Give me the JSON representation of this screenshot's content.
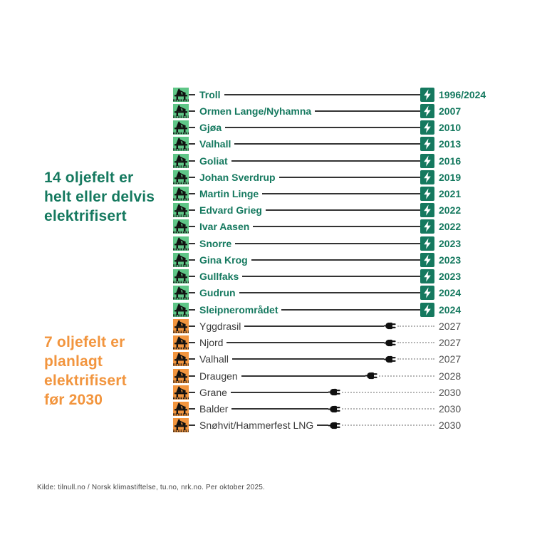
{
  "headline_electrified": {
    "lines": [
      "14 oljefelt er",
      "helt eller delvis",
      "elektrifisert"
    ]
  },
  "headline_planned": {
    "lines": [
      "7 oljefelt er",
      "planlagt",
      "elektrifisert",
      "før 2030"
    ]
  },
  "footer": {
    "source": "Kilde: tilnull.no / Norsk klimastiftelse, tu.no, nrk.no. Per oktober 2025."
  },
  "colors": {
    "teal": "#15795f",
    "rig_green": "#5fc687",
    "orange": "#f2953e",
    "line_dark": "#333333",
    "dotted_gray": "#b5b5b5",
    "name_dark": "#3a3a3a",
    "year_gray": "#4f4f4f",
    "footer_gray": "#464646",
    "icon_black": "#101010"
  },
  "icons": {
    "field_marker": "oil-rig-icon",
    "electrified_marker": "lightning-icon",
    "planned_marker": "plug-icon"
  },
  "chart_data": {
    "type": "table",
    "title": "",
    "groups": [
      {
        "id": "electrified",
        "label": "14 oljefelt er helt eller delvis elektrifisert",
        "fields": [
          {
            "name": "Troll",
            "year": "1996/2024"
          },
          {
            "name": "Ormen Lange/Nyhamna",
            "year": "2007"
          },
          {
            "name": "Gjøa",
            "year": "2010"
          },
          {
            "name": "Valhall",
            "year": "2013"
          },
          {
            "name": "Goliat",
            "year": "2016"
          },
          {
            "name": "Johan Sverdrup",
            "year": "2019"
          },
          {
            "name": "Martin Linge",
            "year": "2021"
          },
          {
            "name": "Edvard Grieg",
            "year": "2022"
          },
          {
            "name": "Ivar Aasen",
            "year": "2022"
          },
          {
            "name": "Snorre",
            "year": "2023"
          },
          {
            "name": "Gina Krog",
            "year": "2023"
          },
          {
            "name": "Gullfaks",
            "year": "2023"
          },
          {
            "name": "Gudrun",
            "year": "2024"
          },
          {
            "name": "Sleipnerområdet",
            "year": "2024"
          }
        ]
      },
      {
        "id": "planned",
        "label": "7 oljefelt er planlagt elektrifisert før 2030",
        "fields": [
          {
            "name": "Yggdrasil",
            "year": "2027"
          },
          {
            "name": "Njord",
            "year": "2027"
          },
          {
            "name": "Valhall",
            "year": "2027"
          },
          {
            "name": "Draugen",
            "year": "2028"
          },
          {
            "name": "Grane",
            "year": "2030"
          },
          {
            "name": "Balder",
            "year": "2030"
          },
          {
            "name": "Snøhvit/Hammerfest LNG",
            "year": "2030"
          }
        ]
      }
    ]
  }
}
